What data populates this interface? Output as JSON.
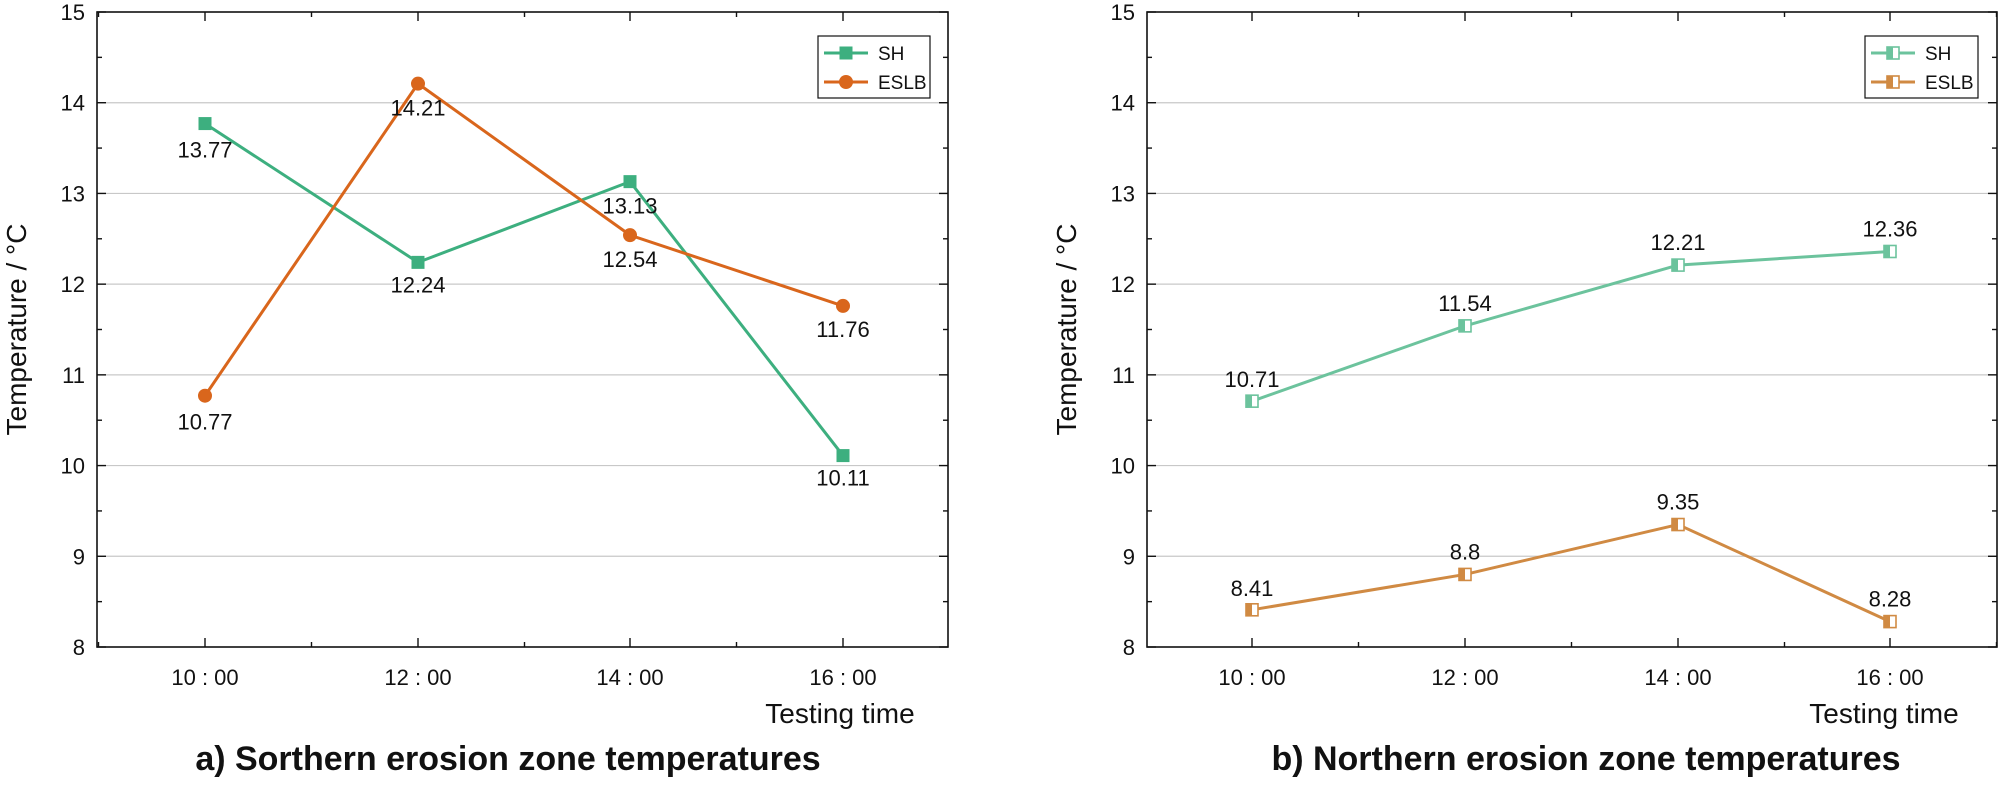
{
  "chart_data": [
    {
      "type": "line",
      "caption": "a) Sorthern erosion zone temperatures",
      "xlabel": "Testing time",
      "ylabel": "Temperature / °C",
      "categories": [
        "10 : 00",
        "12 : 00",
        "14 : 00",
        "16 : 00"
      ],
      "ylim": [
        8,
        15
      ],
      "yticks": [
        "8",
        "9",
        "10",
        "11",
        "12",
        "13",
        "14",
        "15"
      ],
      "grid": true,
      "legend_position": "top-right",
      "series": [
        {
          "name": "SH",
          "values": [
            13.77,
            12.24,
            13.13,
            10.11
          ],
          "labels": [
            "13.77",
            "12.24",
            "13.13",
            "10.11"
          ],
          "color": "#3daf7f",
          "marker": "square"
        },
        {
          "name": "ESLB",
          "values": [
            10.77,
            14.21,
            12.54,
            11.76
          ],
          "labels": [
            "10.77",
            "14.21",
            "12.54",
            "11.76"
          ],
          "color": "#d9661c",
          "marker": "circle"
        }
      ]
    },
    {
      "type": "line",
      "caption": "b) Northern erosion zone temperatures",
      "xlabel": "Testing time",
      "ylabel": "Temperature / °C",
      "categories": [
        "10 : 00",
        "12 : 00",
        "14 : 00",
        "16 : 00"
      ],
      "ylim": [
        8,
        15
      ],
      "yticks": [
        "8",
        "9",
        "10",
        "11",
        "12",
        "13",
        "14",
        "15"
      ],
      "grid": true,
      "legend_position": "top-right",
      "series": [
        {
          "name": "SH",
          "values": [
            10.71,
            11.54,
            12.21,
            12.36
          ],
          "labels": [
            "10.71",
            "11.54",
            "12.21",
            "12.36"
          ],
          "color": "#6cc39d",
          "marker": "half-square"
        },
        {
          "name": "ESLB",
          "values": [
            8.41,
            8.8,
            9.35,
            8.28
          ],
          "labels": [
            "8.41",
            "8.8",
            "9.35",
            "8.28"
          ],
          "color": "#d08a43",
          "marker": "half-square"
        }
      ]
    }
  ]
}
